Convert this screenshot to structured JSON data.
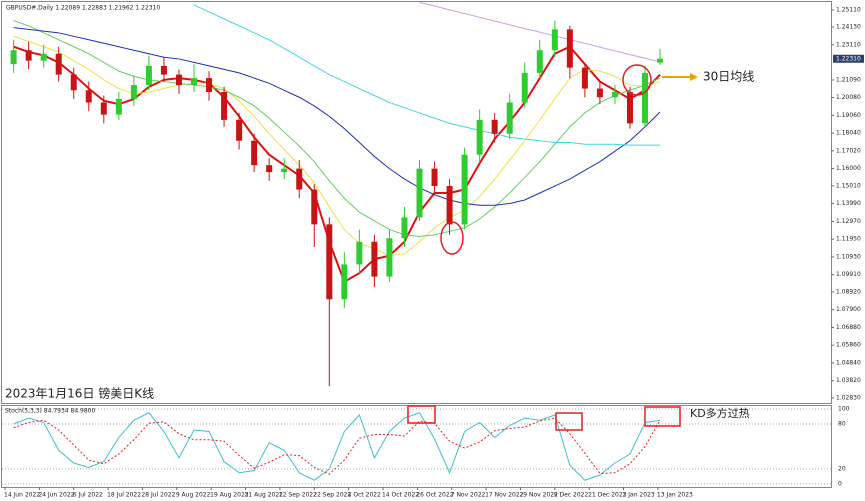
{
  "chart_data": [
    {
      "type": "candlestick",
      "header": "GBPUSD#,Daily  1.22089 1.22883 1.21962 1.22310",
      "title": "2023年1月16日 镑美日K线",
      "annotation": "30日均线",
      "up_color": "#2ecc2e",
      "down_color": "#c81414",
      "xlim": [
        -0.7,
        192.3
      ],
      "ylim": [
        1.0254,
        1.2557
      ],
      "x": [
        2,
        5.5,
        9,
        12.5,
        16,
        19.5,
        23,
        26.5,
        30,
        33.5,
        37,
        40.5,
        44,
        47.5,
        51,
        54.5,
        58,
        61.5,
        65,
        68.5,
        72,
        75.5,
        79,
        82.5,
        86,
        89.5,
        93,
        96.5,
        100,
        103.5,
        107,
        110.5,
        114,
        117.5,
        121,
        124.5,
        128,
        131.5,
        135,
        138.5,
        142,
        145.5,
        149,
        152.5
      ],
      "open": [
        1.22,
        1.228,
        1.222,
        1.226,
        1.214,
        1.205,
        1.198,
        1.191,
        1.2,
        1.208,
        1.219,
        1.214,
        1.208,
        1.212,
        1.204,
        1.188,
        1.176,
        1.162,
        1.158,
        1.16,
        1.148,
        1.128,
        1.085,
        1.105,
        1.118,
        1.098,
        1.12,
        1.132,
        1.16,
        1.15,
        1.128,
        1.168,
        1.188,
        1.18,
        1.198,
        1.215,
        1.228,
        1.24,
        1.218,
        1.206,
        1.201,
        1.204,
        1.186,
        1.22089
      ],
      "high": [
        1.234,
        1.233,
        1.231,
        1.23,
        1.218,
        1.21,
        1.202,
        1.204,
        1.213,
        1.225,
        1.224,
        1.217,
        1.22,
        1.216,
        1.207,
        1.192,
        1.18,
        1.166,
        1.166,
        1.165,
        1.151,
        1.132,
        1.112,
        1.125,
        1.122,
        1.125,
        1.138,
        1.165,
        1.164,
        1.154,
        1.172,
        1.194,
        1.192,
        1.203,
        1.221,
        1.234,
        1.245,
        1.242,
        1.22,
        1.21,
        1.208,
        1.207,
        1.219,
        1.22883
      ],
      "low": [
        1.215,
        1.217,
        1.218,
        1.21,
        1.2,
        1.193,
        1.186,
        1.188,
        1.196,
        1.205,
        1.21,
        1.203,
        1.204,
        1.199,
        1.184,
        1.171,
        1.158,
        1.153,
        1.154,
        1.143,
        1.115,
        1.035,
        1.08,
        1.1,
        1.092,
        1.095,
        1.115,
        1.13,
        1.145,
        1.122,
        1.125,
        1.164,
        1.175,
        1.177,
        1.195,
        1.212,
        1.224,
        1.212,
        1.201,
        1.197,
        1.197,
        1.183,
        1.184,
        1.21962
      ],
      "close": [
        1.228,
        1.222,
        1.226,
        1.214,
        1.205,
        1.198,
        1.191,
        1.2,
        1.208,
        1.219,
        1.214,
        1.208,
        1.212,
        1.204,
        1.188,
        1.176,
        1.162,
        1.158,
        1.16,
        1.148,
        1.128,
        1.085,
        1.105,
        1.118,
        1.098,
        1.12,
        1.132,
        1.16,
        1.15,
        1.128,
        1.168,
        1.188,
        1.18,
        1.198,
        1.215,
        1.228,
        1.24,
        1.218,
        1.206,
        1.201,
        1.204,
        1.186,
        1.215,
        1.2231
      ],
      "series": [
        {
          "color": "#e01010",
          "width": 2,
          "values": [
            1.23,
            1.227,
            1.225,
            1.221,
            1.214,
            1.206,
            1.199,
            1.197,
            1.2,
            1.207,
            1.211,
            1.212,
            1.211,
            1.209,
            1.201,
            1.19,
            1.178,
            1.168,
            1.162,
            1.156,
            1.146,
            1.118,
            1.095,
            1.1,
            1.108,
            1.11,
            1.118,
            1.135,
            1.146,
            1.146,
            1.148,
            1.163,
            1.177,
            1.187,
            1.198,
            1.212,
            1.226,
            1.23,
            1.22,
            1.21,
            1.205,
            1.2,
            1.205,
            1.214
          ]
        },
        {
          "color": "#f0e040",
          "width": 1,
          "values": [
            1.236,
            1.233,
            1.23,
            1.227,
            1.222,
            1.217,
            1.211,
            1.206,
            1.203,
            1.204,
            1.206,
            1.208,
            1.209,
            1.209,
            1.206,
            1.199,
            1.19,
            1.18,
            1.171,
            1.162,
            1.152,
            1.138,
            1.125,
            1.117,
            1.114,
            1.11,
            1.111,
            1.118,
            1.126,
            1.132,
            1.136,
            1.144,
            1.154,
            1.165,
            1.176,
            1.188,
            1.2,
            1.212,
            1.217,
            1.216,
            1.213,
            1.208,
            1.207,
            1.21
          ]
        },
        {
          "color": "#60d060",
          "width": 1,
          "values": [
            1.245,
            1.242,
            1.238,
            1.234,
            1.23,
            1.226,
            1.221,
            1.216,
            1.213,
            1.211,
            1.21,
            1.209,
            1.208,
            1.207,
            1.205,
            1.201,
            1.196,
            1.189,
            1.181,
            1.173,
            1.164,
            1.153,
            1.143,
            1.135,
            1.13,
            1.125,
            1.122,
            1.121,
            1.122,
            1.124,
            1.126,
            1.131,
            1.138,
            1.146,
            1.155,
            1.164,
            1.174,
            1.184,
            1.192,
            1.198,
            1.202,
            1.205,
            1.208,
            1.212
          ]
        },
        {
          "color": "#2030b0",
          "width": 1,
          "values": [
            1.241,
            1.24,
            1.239,
            1.238,
            1.236,
            1.234,
            1.232,
            1.23,
            1.228,
            1.226,
            1.224,
            1.223,
            1.221,
            1.219,
            1.217,
            1.215,
            1.212,
            1.209,
            1.205,
            1.201,
            1.196,
            1.19,
            1.183,
            1.175,
            1.167,
            1.16,
            1.154,
            1.149,
            1.145,
            1.142,
            1.14,
            1.139,
            1.139,
            1.14,
            1.142,
            1.146,
            1.15,
            1.154,
            1.159,
            1.164,
            1.17,
            1.176,
            1.184,
            1.1925
          ]
        },
        {
          "color": "#40d8e0",
          "width": 1,
          "values": [
            null,
            null,
            null,
            null,
            null,
            null,
            null,
            null,
            null,
            null,
            null,
            null,
            1.254,
            1.25,
            1.246,
            1.242,
            1.238,
            1.234,
            1.229,
            1.224,
            1.219,
            1.214,
            1.21,
            1.206,
            1.202,
            1.198,
            1.195,
            1.192,
            1.189,
            1.186,
            1.184,
            1.182,
            1.18,
            1.178,
            1.177,
            1.176,
            1.175,
            1.175,
            1.174,
            1.174,
            1.174,
            1.1735,
            1.1735,
            1.1735
          ]
        },
        {
          "color": "#c8a0e0",
          "width": 1,
          "values": [
            null,
            null,
            null,
            null,
            null,
            null,
            null,
            null,
            null,
            null,
            null,
            null,
            null,
            null,
            null,
            null,
            null,
            null,
            null,
            null,
            null,
            null,
            null,
            null,
            null,
            null,
            null,
            1.2555,
            1.2534,
            1.2512,
            1.2491,
            1.2469,
            1.2448,
            1.2426,
            1.2405,
            1.2384,
            1.2362,
            1.2341,
            1.2319,
            1.2298,
            1.2276,
            1.2255,
            1.2234,
            1.2212
          ]
        }
      ],
      "last_price": {
        "value": 1.2231,
        "label": "1.22310"
      },
      "yticks": [
        {
          "value": 1.2511,
          "label": "1.25110"
        },
        {
          "value": 1.2413,
          "label": "1.24130"
        },
        {
          "value": 1.2311,
          "label": "1.23110"
        },
        {
          "value": 1.2109,
          "label": "1.21090"
        },
        {
          "value": 1.2008,
          "label": "1.20080"
        },
        {
          "value": 1.1906,
          "label": "1.19060"
        },
        {
          "value": 1.1804,
          "label": "1.18040"
        },
        {
          "value": 1.1702,
          "label": "1.17020"
        },
        {
          "value": 1.16,
          "label": "1.16000"
        },
        {
          "value": 1.1501,
          "label": "1.15010"
        },
        {
          "value": 1.1399,
          "label": "1.13990"
        },
        {
          "value": 1.1297,
          "label": "1.12970"
        },
        {
          "value": 1.1195,
          "label": "1.11950"
        },
        {
          "value": 1.1093,
          "label": "1.10930"
        },
        {
          "value": 1.0991,
          "label": "1.09910"
        },
        {
          "value": 1.0892,
          "label": "1.08920"
        },
        {
          "value": 1.079,
          "label": "1.07900"
        },
        {
          "value": 1.0688,
          "label": "1.06880"
        },
        {
          "value": 1.0586,
          "label": "1.05860"
        },
        {
          "value": 1.0484,
          "label": "1.04840"
        },
        {
          "value": 1.0382,
          "label": "1.03820"
        },
        {
          "value": 1.0283,
          "label": "1.02830"
        }
      ]
    },
    {
      "type": "line",
      "header": "Stoch(5,3,3) 84.7934 84.9800",
      "annotation": "KD多方过热",
      "ylim": [
        0,
        100
      ],
      "yticks": [
        100,
        80,
        20,
        0
      ],
      "xticks": [
        {
          "value": 0,
          "label": "14 Jun 2022"
        },
        {
          "value": 8,
          "label": "24 Jun 2022"
        },
        {
          "value": 16,
          "label": "6 Jul 2022"
        },
        {
          "value": 24,
          "label": "18 Jul 2022"
        },
        {
          "value": 32,
          "label": "28 Jul 2022"
        },
        {
          "value": 40,
          "label": "9 Aug 2022"
        },
        {
          "value": 48,
          "label": "19 Aug 2022"
        },
        {
          "value": 56,
          "label": "31 Aug 2022"
        },
        {
          "value": 64,
          "label": "12 Sep 2022"
        },
        {
          "value": 72,
          "label": "22 Sep 2022"
        },
        {
          "value": 80,
          "label": "4 Oct 2022"
        },
        {
          "value": 88,
          "label": "14 Oct 2022"
        },
        {
          "value": 96,
          "label": "26 Oct 2022"
        },
        {
          "value": 104,
          "label": "7 Nov 2022"
        },
        {
          "value": 112,
          "label": "17 Nov 2022"
        },
        {
          "value": 120,
          "label": "29 Nov 2022"
        },
        {
          "value": 128,
          "label": "9 Dec 2022"
        },
        {
          "value": 136,
          "label": "21 Dec 2022"
        },
        {
          "value": 144,
          "label": "3 Jan 2023"
        },
        {
          "value": 152,
          "label": "13 Jan 2023"
        }
      ],
      "series": [
        {
          "color": "#40c0c8",
          "dashed": false,
          "values": [
            80,
            88,
            82,
            45,
            28,
            22,
            30,
            62,
            85,
            95,
            70,
            35,
            72,
            70,
            30,
            15,
            18,
            55,
            45,
            15,
            5,
            20,
            70,
            92,
            35,
            70,
            88,
            95,
            60,
            15,
            70,
            82,
            62,
            78,
            88,
            85,
            92,
            25,
            5,
            12,
            28,
            40,
            82,
            84.7934
          ]
        },
        {
          "color": "#e02020",
          "dashed": true,
          "values": [
            75,
            82,
            85,
            72,
            52,
            32,
            27,
            40,
            59,
            81,
            83,
            67,
            59,
            59,
            57,
            38,
            21,
            29,
            39,
            38,
            22,
            13,
            32,
            61,
            66,
            66,
            64,
            84,
            81,
            57,
            48,
            56,
            71,
            74,
            76,
            84,
            88,
            67,
            41,
            14,
            15,
            27,
            50,
            84.98
          ]
        }
      ]
    }
  ]
}
